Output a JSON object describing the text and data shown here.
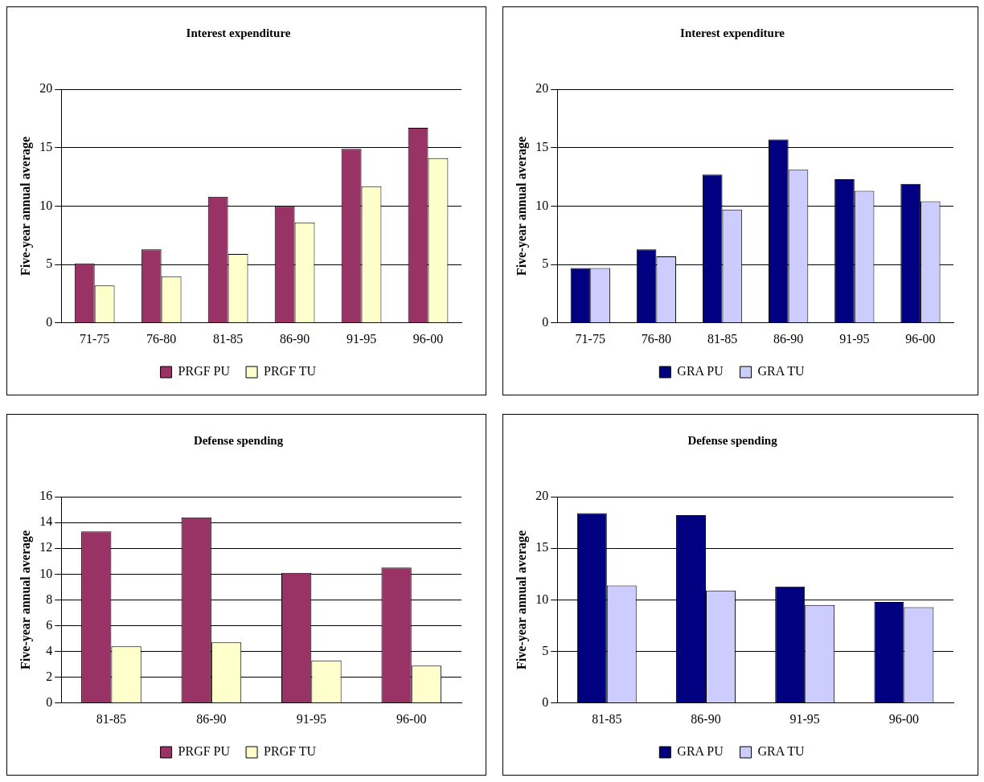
{
  "chart_data": [
    {
      "type": "bar",
      "title": "Interest expenditure",
      "ylabel": "Five-year annual average",
      "categories": [
        "71-75",
        "76-80",
        "81-85",
        "86-90",
        "91-95",
        "96-00"
      ],
      "series": [
        {
          "name": "PRGF PU",
          "color": "#993366",
          "values": [
            5.1,
            6.3,
            10.8,
            10.0,
            14.9,
            16.7
          ]
        },
        {
          "name": "PRGF TU",
          "color": "#ffffcc",
          "values": [
            3.2,
            4.0,
            5.9,
            8.6,
            11.7,
            14.1
          ]
        }
      ],
      "ylim": [
        0,
        20
      ],
      "yticks": [
        0,
        5,
        10,
        15,
        20
      ],
      "grid": "y",
      "legend": "bottom"
    },
    {
      "type": "bar",
      "title": "Interest expenditure",
      "ylabel": "Five-year annual average",
      "categories": [
        "71-75",
        "76-80",
        "81-85",
        "86-90",
        "91-95",
        "96-00"
      ],
      "series": [
        {
          "name": "GRA PU",
          "color": "#000080",
          "values": [
            4.7,
            6.3,
            12.7,
            15.7,
            12.3,
            11.9
          ]
        },
        {
          "name": "GRA TU",
          "color": "#ccccff",
          "values": [
            4.7,
            5.7,
            9.7,
            13.1,
            11.3,
            10.4
          ]
        }
      ],
      "ylim": [
        0,
        20
      ],
      "yticks": [
        0,
        5,
        10,
        15,
        20
      ],
      "grid": "y",
      "legend": "bottom"
    },
    {
      "type": "bar",
      "title": "Defense spending",
      "ylabel": "Five-year annual average",
      "categories": [
        "81-85",
        "86-90",
        "91-95",
        "96-00"
      ],
      "series": [
        {
          "name": "PRGF PU",
          "color": "#993366",
          "values": [
            13.3,
            14.4,
            10.1,
            10.5
          ]
        },
        {
          "name": "PRGF TU",
          "color": "#ffffcc",
          "values": [
            4.4,
            4.7,
            3.3,
            2.9
          ]
        }
      ],
      "ylim": [
        0,
        16
      ],
      "yticks": [
        0,
        2,
        4,
        6,
        8,
        10,
        12,
        14,
        16
      ],
      "grid": "y",
      "legend": "bottom"
    },
    {
      "type": "bar",
      "title": "Defense spending",
      "ylabel": "Five-year annual average",
      "categories": [
        "81-85",
        "86-90",
        "91-95",
        "96-00"
      ],
      "series": [
        {
          "name": "GRA PU",
          "color": "#000080",
          "values": [
            18.4,
            18.2,
            11.3,
            9.8
          ]
        },
        {
          "name": "GRA TU",
          "color": "#ccccff",
          "values": [
            11.4,
            10.9,
            9.5,
            9.3
          ]
        }
      ],
      "ylim": [
        0,
        20
      ],
      "yticks": [
        0,
        5,
        10,
        15,
        20
      ],
      "grid": "y",
      "legend": "bottom"
    }
  ]
}
